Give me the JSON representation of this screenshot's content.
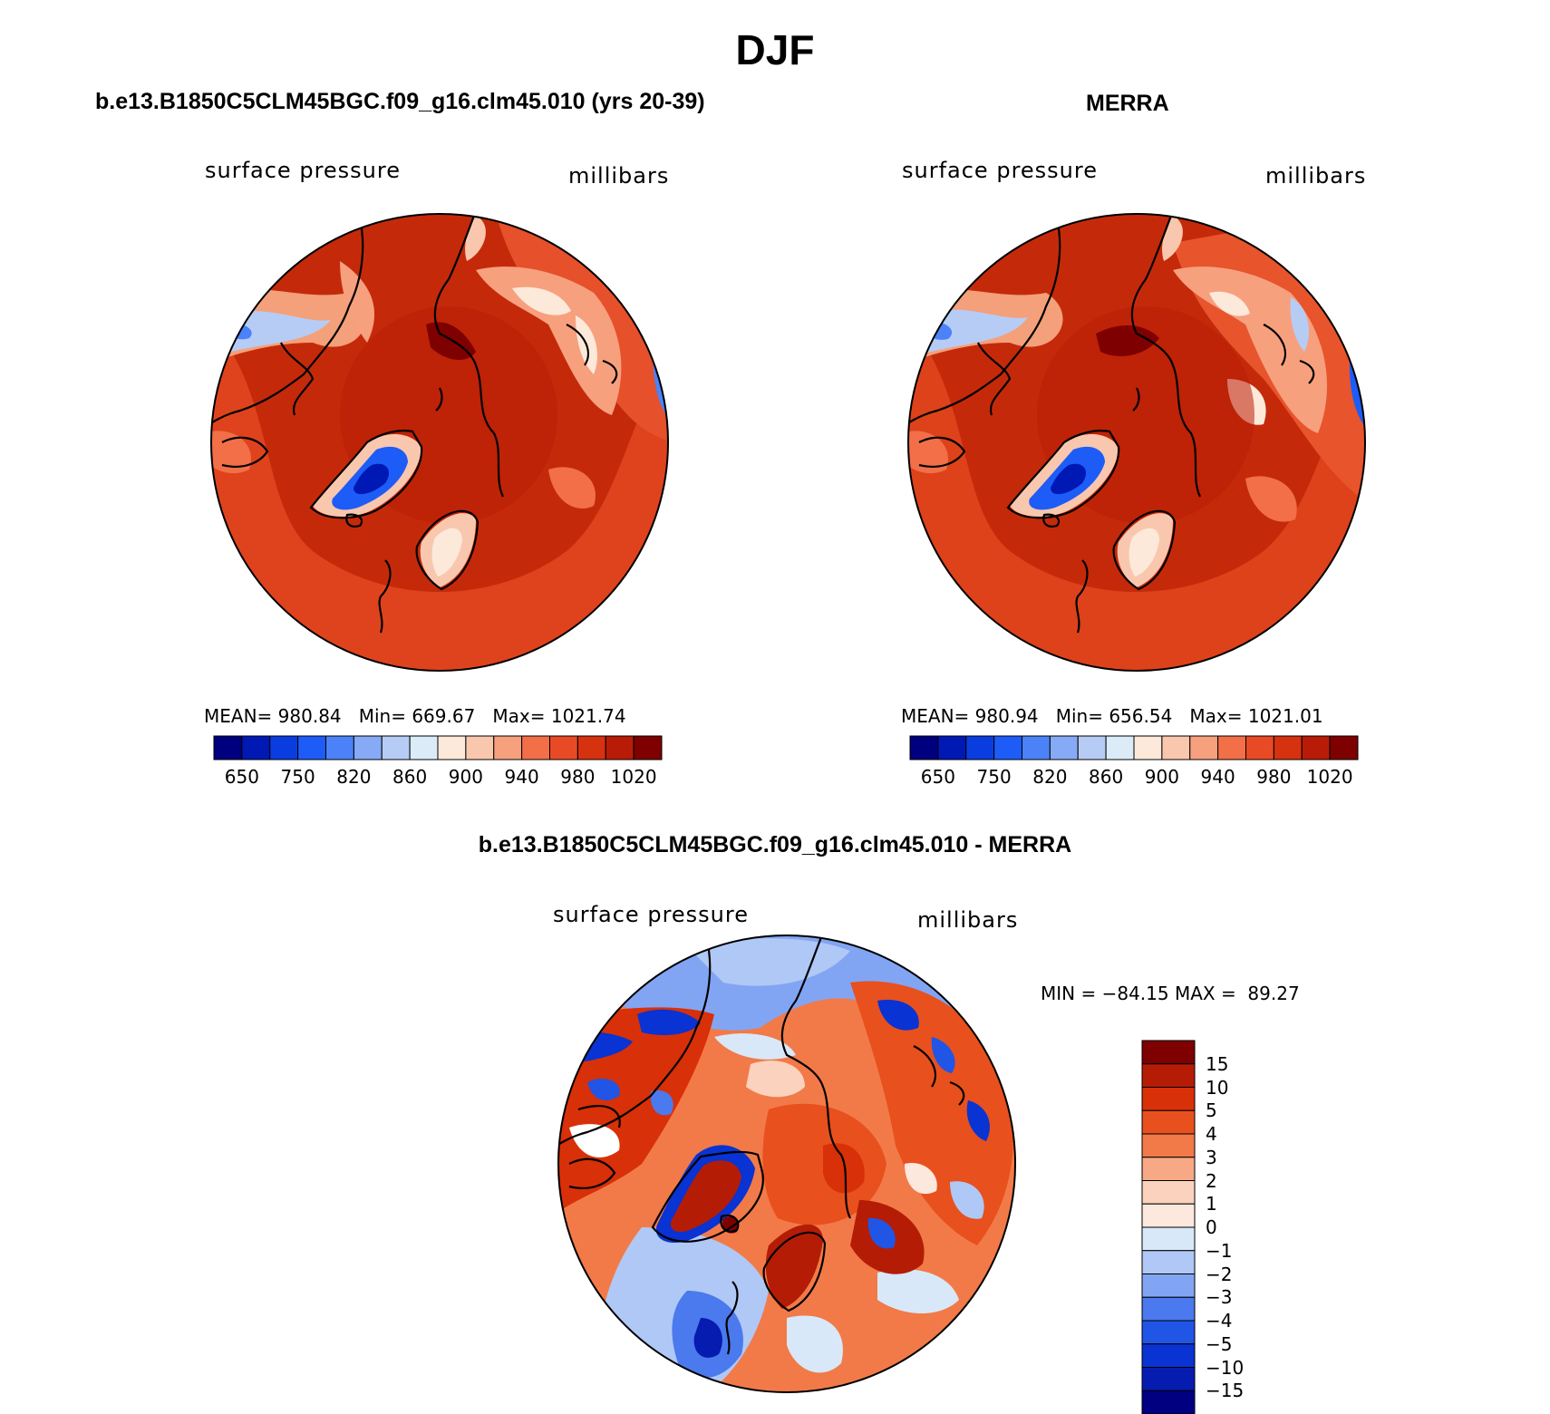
{
  "figure": {
    "title": "DJF",
    "panels": [
      {
        "id": "model",
        "title": "b.e13.B1850C5CLM45BGC.f09_g16.clm45.010 (yrs 20-39)",
        "left_label": "surface pressure",
        "right_label": "millibars",
        "stats": {
          "mean_label": "MEAN=",
          "mean": "980.84",
          "min_label": "Min=",
          "min": "669.67",
          "max_label": "Max=",
          "max": "1021.74"
        }
      },
      {
        "id": "obs",
        "title": "MERRA",
        "left_label": "surface pressure",
        "right_label": "millibars",
        "stats": {
          "mean_label": "MEAN=",
          "mean": "980.94",
          "min_label": "Min=",
          "min": "656.54",
          "max_label": "Max=",
          "max": "1021.01"
        }
      },
      {
        "id": "diff",
        "title": "b.e13.B1850C5CLM45BGC.f09_g16.clm45.010 - MERRA",
        "left_label": "surface pressure",
        "right_label": "millibars",
        "stats_text": "MIN = −84.15 MAX =  89.27"
      }
    ],
    "abs_colorbar": {
      "colors": [
        "#00007e",
        "#0019b5",
        "#0a3de0",
        "#1e5cf7",
        "#4b82f7",
        "#86aaf5",
        "#b6ccf5",
        "#dcebf8",
        "#fce9da",
        "#f9c7ae",
        "#f7a07e",
        "#f26f48",
        "#e84a25",
        "#d63210",
        "#b91c06",
        "#7e0000"
      ],
      "tick_labels": [
        "650",
        "750",
        "820",
        "860",
        "900",
        "940",
        "980",
        "1020"
      ]
    },
    "diff_colorbar": {
      "colors": [
        "#7e0000",
        "#b51c06",
        "#d83008",
        "#e8501e",
        "#f27a48",
        "#f7a884",
        "#fbd2bd",
        "#fde8de",
        "#d8e8f8",
        "#b0c8f5",
        "#82a5f3",
        "#4b79ee",
        "#2055e6",
        "#0933d2",
        "#061cb0",
        "#000080"
      ],
      "tick_labels": [
        "15",
        "10",
        "5",
        "4",
        "3",
        "2",
        "1",
        "0",
        "−1",
        "−2",
        "−3",
        "−4",
        "−5",
        "−10",
        "−15"
      ]
    }
  }
}
